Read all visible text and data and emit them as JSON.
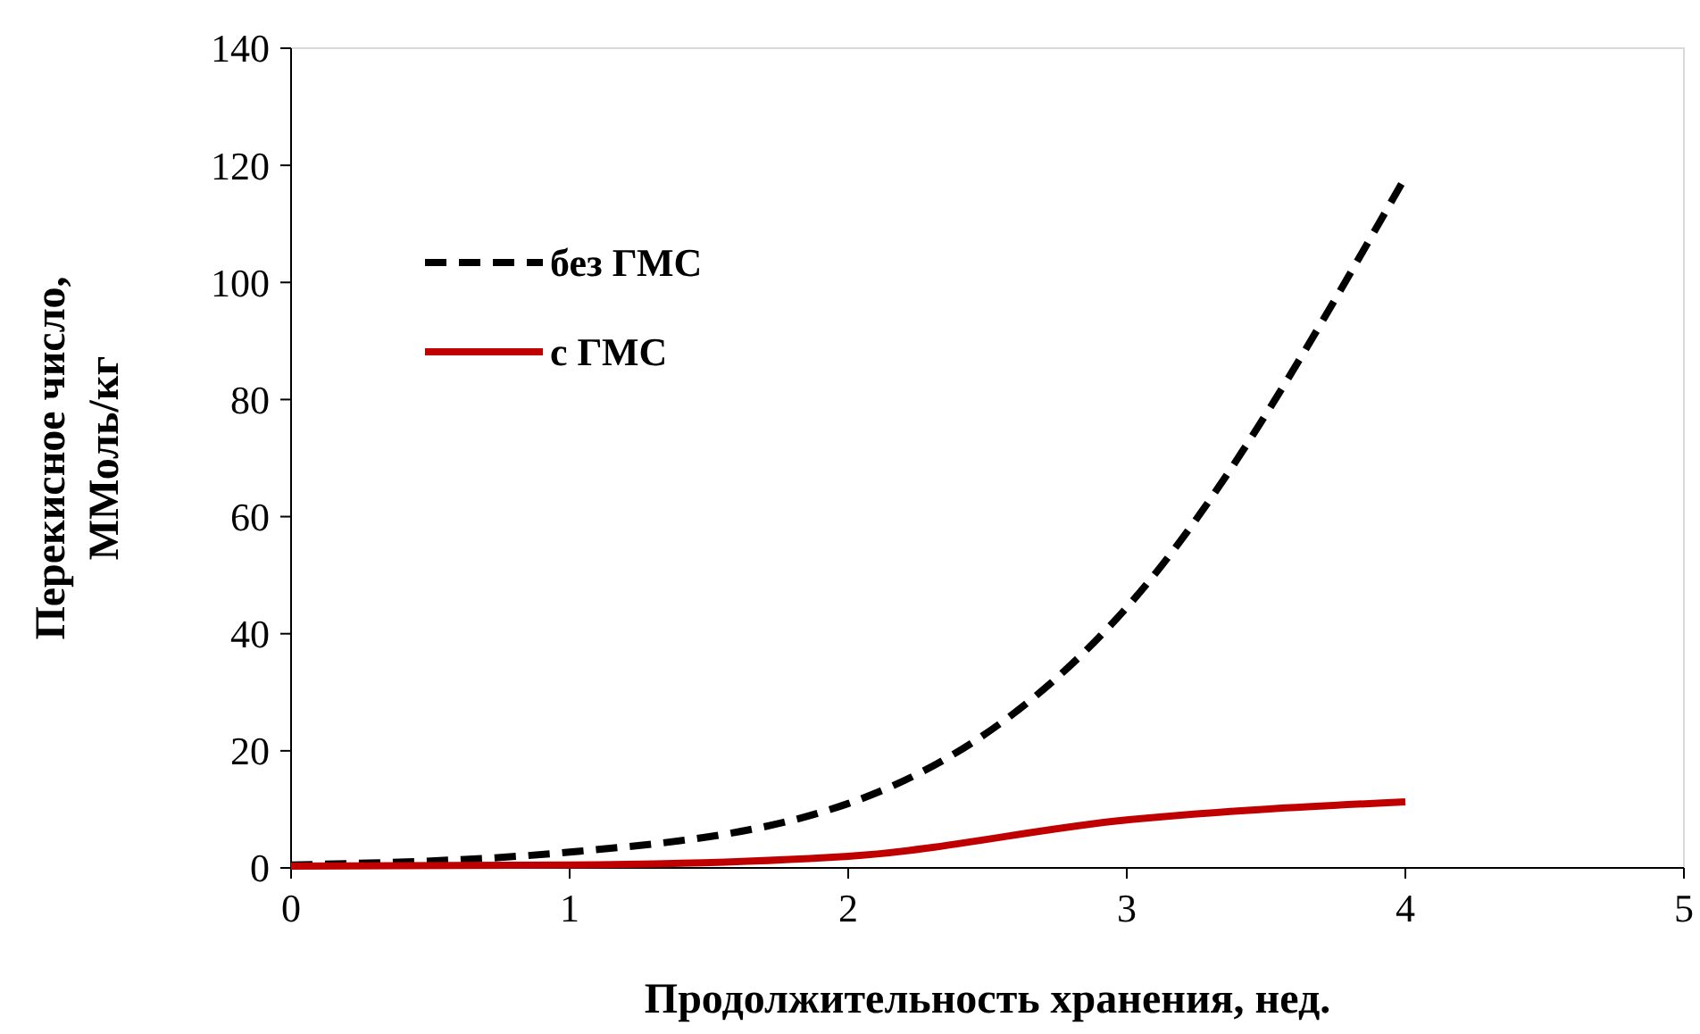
{
  "chart_data": {
    "type": "line",
    "xlabel": "Продолжительность хранения, нед.",
    "ylabel": "Перекисное число, ММоль/кг",
    "x": [
      0,
      1,
      2,
      3,
      4
    ],
    "xlim": [
      0,
      5
    ],
    "xticks": [
      0,
      1,
      2,
      3,
      4,
      5
    ],
    "ylim": [
      0,
      140
    ],
    "yticks": [
      0,
      20,
      40,
      60,
      80,
      100,
      120,
      140
    ],
    "grid": false,
    "legend": "top left",
    "marker": "none",
    "series": [
      {
        "name": "без ГМС",
        "color": "#000000",
        "line_style": "dashed",
        "values": [
          0.5,
          2.7,
          11,
          44.5,
          118
        ]
      },
      {
        "name": "с ГМС",
        "color": "#c00000",
        "line_style": "solid",
        "values": [
          0.3,
          0.5,
          2,
          8.2,
          11.3
        ]
      }
    ]
  }
}
